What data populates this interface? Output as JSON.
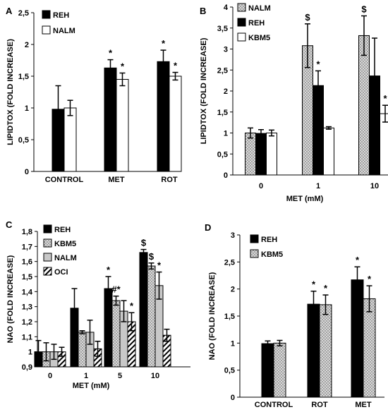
{
  "chart_data": [
    {
      "panel": "A",
      "type": "bar",
      "ylabel": "LIPIDTOX (FOLD INCREASE)",
      "xlabel": "",
      "ylim": [
        0,
        2.5
      ],
      "yticks": [
        "0",
        "0,5",
        "1",
        "1,5",
        "2",
        "2,5"
      ],
      "categories": [
        "CONTROL",
        "MET",
        "ROT"
      ],
      "legend_position": "top-left",
      "series": [
        {
          "name": "REH",
          "fill": "#000000",
          "pattern": "solid",
          "values": [
            0.98,
            1.63,
            1.73
          ],
          "errors": [
            0.37,
            0.13,
            0.18
          ]
        },
        {
          "name": "NALM",
          "fill": "#ffffff",
          "pattern": "solid",
          "values": [
            1.0,
            1.45,
            1.5
          ],
          "errors": [
            0.12,
            0.1,
            0.06
          ]
        }
      ],
      "annotations": [
        {
          "series": 0,
          "category": 1,
          "text": "*"
        },
        {
          "series": 1,
          "category": 1,
          "text": "*"
        },
        {
          "series": 0,
          "category": 2,
          "text": "*"
        },
        {
          "series": 1,
          "category": 2,
          "text": "*"
        }
      ]
    },
    {
      "panel": "B",
      "type": "bar",
      "ylabel": "LIPIDTOX (FOLD INCREASE)",
      "xlabel": "MET (mM)",
      "ylim": [
        0,
        4
      ],
      "yticks": [
        "0",
        "0,5",
        "1",
        "1,5",
        "2",
        "2,5",
        "3",
        "3,5",
        "4"
      ],
      "categories": [
        "0",
        "1",
        "10"
      ],
      "legend_position": "top-left",
      "series": [
        {
          "name": "NALM",
          "fill": "#bdbdbd",
          "pattern": "dots",
          "values": [
            1.0,
            3.08,
            3.32
          ],
          "errors": [
            0.12,
            0.52,
            0.47
          ]
        },
        {
          "name": "REH",
          "fill": "#000000",
          "pattern": "solid",
          "values": [
            0.99,
            2.13,
            2.36
          ],
          "errors": [
            0.09,
            0.35,
            0.9
          ]
        },
        {
          "name": "KBM5",
          "fill": "#ffffff",
          "pattern": "solid",
          "values": [
            1.0,
            1.12,
            1.46
          ],
          "errors": [
            0.07,
            0.03,
            0.2
          ]
        }
      ],
      "annotations": [
        {
          "series": 0,
          "category": 1,
          "text": "$"
        },
        {
          "series": 1,
          "category": 1,
          "text": "*"
        },
        {
          "series": 0,
          "category": 2,
          "text": "$"
        },
        {
          "series": 2,
          "category": 2,
          "text": "*"
        }
      ]
    },
    {
      "panel": "C",
      "type": "bar",
      "ylabel": "NAO (FOLD INCREASE)",
      "xlabel": "MET (mM)",
      "ylim": [
        0.9,
        1.8
      ],
      "yticks": [
        "0,9",
        "1",
        "1,1",
        "1,2",
        "1,3",
        "1,4",
        "1,5",
        "1,6",
        "1,7",
        "1,8"
      ],
      "categories": [
        "0",
        "1",
        "5",
        "10"
      ],
      "legend_position": "top-left",
      "series": [
        {
          "name": "REH",
          "fill": "#000000",
          "pattern": "solid",
          "values": [
            1.0,
            1.29,
            1.42,
            1.66
          ],
          "errors": [
            0.075,
            0.13,
            0.08,
            0.02
          ]
        },
        {
          "name": "KBM5",
          "fill": "#ffffff",
          "pattern": "dots",
          "values": [
            1.0,
            1.13,
            1.34,
            1.57
          ],
          "errors": [
            0.06,
            0.01,
            0.03,
            0.02
          ]
        },
        {
          "name": "NALM",
          "fill": "#c8c8c8",
          "pattern": "solid",
          "values": [
            1.0,
            1.13,
            1.27,
            1.44
          ],
          "errors": [
            0.05,
            0.08,
            0.07,
            0.09
          ]
        },
        {
          "name": "OCI",
          "fill": "#ffffff",
          "pattern": "hatch",
          "values": [
            1.0,
            1.02,
            1.2,
            1.11
          ],
          "errors": [
            0.03,
            0.05,
            0.06,
            0.04
          ]
        }
      ],
      "annotations": [
        {
          "series": 0,
          "category": 2,
          "text": "*"
        },
        {
          "series": 1,
          "category": 2,
          "text": "#*"
        },
        {
          "series": 3,
          "category": 2,
          "text": "*"
        },
        {
          "series": 0,
          "category": 3,
          "text": "$"
        },
        {
          "series": 1,
          "category": 3,
          "text": "$"
        },
        {
          "series": 2,
          "category": 3,
          "text": "*"
        }
      ]
    },
    {
      "panel": "D",
      "type": "bar",
      "ylabel": "NAO (FOLD INCREASE)",
      "xlabel": "",
      "ylim": [
        0,
        3
      ],
      "yticks": [
        "0",
        "0,5",
        "1",
        "1,5",
        "2",
        "2,5",
        "3"
      ],
      "categories": [
        "CONTROL",
        "ROT",
        "MET"
      ],
      "legend_position": "top-left",
      "series": [
        {
          "name": "REH",
          "fill": "#000000",
          "pattern": "solid",
          "values": [
            0.99,
            1.72,
            2.17
          ],
          "errors": [
            0.05,
            0.24,
            0.24
          ]
        },
        {
          "name": "KBM5",
          "fill": "#ffffff",
          "pattern": "dots",
          "values": [
            1.0,
            1.71,
            1.82
          ],
          "errors": [
            0.05,
            0.18,
            0.24
          ]
        }
      ],
      "annotations": [
        {
          "series": 0,
          "category": 1,
          "text": "*"
        },
        {
          "series": 1,
          "category": 1,
          "text": "*"
        },
        {
          "series": 0,
          "category": 2,
          "text": "*"
        },
        {
          "series": 1,
          "category": 2,
          "text": "*"
        }
      ]
    }
  ]
}
